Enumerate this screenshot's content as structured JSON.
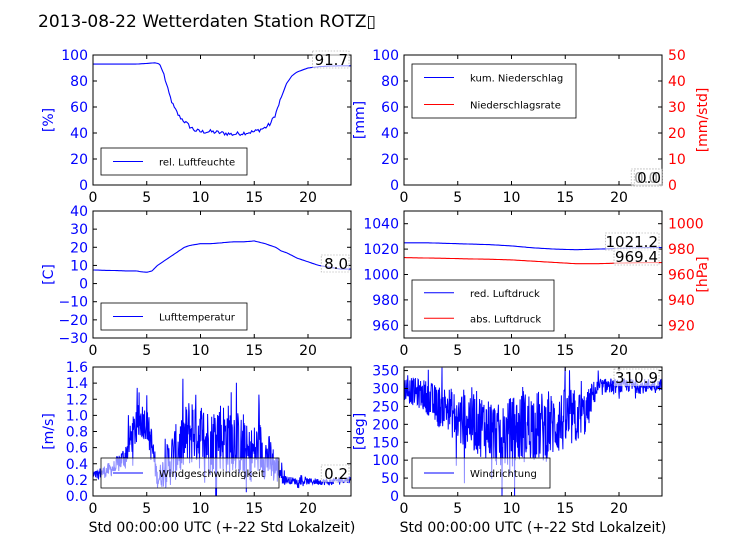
{
  "title": "2013-08-22 Wetterdaten Station ROTZ",
  "title_glyph": "▯",
  "colors": {
    "primary": "#0000ff",
    "secondary": "#ff0000",
    "axis": "#000000"
  },
  "chart_data": [
    {
      "type": "line",
      "panel": "humidity",
      "ylabel": "[%]",
      "xlabel": "",
      "xlim": [
        0,
        24
      ],
      "ylim": [
        0,
        100
      ],
      "xticks": [
        "0",
        "5",
        "10",
        "15",
        "20"
      ],
      "yticks": [
        "0",
        "20",
        "40",
        "60",
        "80",
        "100"
      ],
      "legend": {
        "placement": "lower-left"
      },
      "series": [
        {
          "name": "rel. Luftfeuchte",
          "color": "#0000ff",
          "style": "smooth",
          "x": [
            0,
            2,
            4,
            5,
            5.8,
            6.2,
            6.6,
            7,
            7.5,
            8,
            8.5,
            9,
            9.5,
            10,
            11,
            12,
            13,
            14,
            15,
            16,
            16.5,
            17,
            17.5,
            18,
            18.5,
            19,
            20,
            21,
            22,
            23,
            24
          ],
          "y": [
            93,
            93,
            93,
            93.5,
            94,
            93,
            85,
            72,
            60,
            53,
            49,
            45,
            42,
            41,
            41,
            40,
            39,
            40,
            41,
            44,
            47,
            55,
            67,
            78,
            84,
            87,
            90,
            91,
            91.5,
            91.7,
            91.7
          ]
        }
      ],
      "annotations": [
        "91.7"
      ]
    },
    {
      "type": "line",
      "panel": "precipitation",
      "ylabel": "[mm]",
      "y2label": "[mm/std]",
      "xlabel": "",
      "xlim": [
        0,
        24
      ],
      "ylim": [
        0,
        100
      ],
      "y2lim": [
        0,
        50
      ],
      "xticks": [
        "0",
        "5",
        "10",
        "15",
        "20"
      ],
      "yticks": [
        "0",
        "20",
        "40",
        "60",
        "80",
        "100"
      ],
      "y2ticks": [
        "0",
        "10",
        "20",
        "30",
        "40",
        "50"
      ],
      "legend": {
        "placement": "upper-left"
      },
      "series": [
        {
          "name": "kum. Niederschlag",
          "color": "#0000ff",
          "style": "smooth",
          "x": [
            0,
            24
          ],
          "y": [
            0,
            0
          ]
        },
        {
          "name": "Niederschlagsrate",
          "color": "#ff0000",
          "style": "smooth",
          "axis": "right",
          "x": [
            0,
            24
          ],
          "y": [
            0,
            0
          ]
        }
      ],
      "annotations": [
        "0.0",
        "0.0"
      ]
    },
    {
      "type": "line",
      "panel": "temperature",
      "ylabel": "[C]",
      "xlabel": "",
      "xlim": [
        0,
        24
      ],
      "ylim": [
        -30,
        40
      ],
      "xticks": [
        "0",
        "5",
        "10",
        "15",
        "20"
      ],
      "yticks": [
        "−30",
        "−20",
        "−10",
        "0",
        "10",
        "20",
        "30",
        "40"
      ],
      "legend": {
        "placement": "lower-left"
      },
      "series": [
        {
          "name": "Lufttemperatur",
          "color": "#0000ff",
          "style": "smooth",
          "x": [
            0,
            1,
            2,
            3,
            4,
            4.5,
            5,
            5.5,
            6,
            6.5,
            7,
            7.5,
            8,
            8.5,
            9,
            10,
            11,
            12,
            13,
            14,
            15,
            16,
            17,
            17.5,
            18,
            19,
            20,
            21,
            22,
            23,
            24
          ],
          "y": [
            7.5,
            7.3,
            7.2,
            7,
            7,
            6.5,
            6.2,
            7,
            10,
            12,
            14,
            16,
            18,
            20,
            21,
            22,
            22,
            22.5,
            23,
            23,
            23.5,
            22,
            20,
            18,
            17,
            14,
            12,
            10,
            9,
            8,
            8
          ]
        }
      ],
      "annotations": [
        "8.0"
      ]
    },
    {
      "type": "line",
      "panel": "pressure",
      "ylabel": "",
      "y2label": "[hPa]",
      "xlabel": "",
      "xlim": [
        0,
        24
      ],
      "ylim": [
        950,
        1050
      ],
      "y2lim": [
        910,
        1010
      ],
      "xticks": [
        "0",
        "5",
        "10",
        "15",
        "20"
      ],
      "yticks": [
        "960",
        "980",
        "1000",
        "1020",
        "1040"
      ],
      "y2ticks": [
        "920",
        "940",
        "960",
        "980",
        "1000"
      ],
      "legend": {
        "placement": "lower-left"
      },
      "series": [
        {
          "name": "red. Luftdruck",
          "color": "#0000ff",
          "style": "smooth",
          "x": [
            0,
            2,
            4,
            6,
            8,
            10,
            12,
            14,
            16,
            18,
            20,
            22,
            24
          ],
          "y": [
            1025,
            1025,
            1024.5,
            1024,
            1023.5,
            1022.5,
            1021,
            1020,
            1019.5,
            1020,
            1020.5,
            1021,
            1021.2
          ]
        },
        {
          "name": "abs. Luftdruck",
          "color": "#ff0000",
          "style": "smooth",
          "axis": "right",
          "x": [
            0,
            2,
            4,
            6,
            8,
            10,
            12,
            14,
            16,
            18,
            20,
            22,
            24
          ],
          "y": [
            973.3,
            973,
            972.7,
            972.3,
            972,
            971.5,
            970.5,
            969.5,
            968.5,
            968.5,
            969,
            969.3,
            969.4
          ]
        }
      ],
      "annotations": [
        "1021.2",
        "969.4"
      ]
    },
    {
      "type": "line",
      "panel": "wind-speed",
      "ylabel": "[m/s]",
      "xlabel": "Std 00:00:00 UTC (+-22 Std Lokalzeit)",
      "xlim": [
        0,
        24
      ],
      "ylim": [
        0,
        1.6
      ],
      "xticks": [
        "0",
        "5",
        "10",
        "15",
        "20"
      ],
      "yticks": [
        "0.0",
        "0.2",
        "0.4",
        "0.6",
        "0.8",
        "1.0",
        "1.2",
        "1.4",
        "1.6"
      ],
      "legend": {
        "placement": "lower-left"
      },
      "series": [
        {
          "name": "Windgeschwindigkeit",
          "color": "#0000ff",
          "style": "noisy",
          "x": [
            0,
            1,
            2,
            3,
            3.5,
            4,
            4.5,
            5,
            5.5,
            6,
            6.5,
            7,
            7.5,
            8,
            8.5,
            9,
            9.5,
            10,
            10.5,
            11,
            11.5,
            12,
            12.5,
            13,
            13.5,
            14,
            14.5,
            15,
            15.5,
            16,
            16.5,
            17,
            17.5,
            18,
            19,
            20,
            21,
            22,
            23,
            24
          ],
          "y": [
            0.25,
            0.3,
            0.35,
            0.5,
            0.7,
            0.85,
            0.95,
            0.9,
            0.6,
            0.2,
            0.3,
            0.4,
            0.5,
            0.6,
            0.7,
            0.8,
            0.85,
            0.75,
            0.7,
            0.65,
            0.8,
            0.75,
            0.7,
            0.75,
            0.65,
            0.55,
            0.5,
            0.55,
            0.6,
            0.5,
            0.45,
            0.35,
            0.3,
            0.2,
            0.18,
            0.18,
            0.18,
            0.17,
            0.2,
            0.2
          ],
          "amp": [
            0.05,
            0.08,
            0.1,
            0.15,
            0.2,
            0.25,
            0.25,
            0.2,
            0.25,
            0.1,
            0.2,
            0.3,
            0.35,
            0.35,
            0.4,
            0.45,
            0.45,
            0.45,
            0.45,
            0.4,
            0.45,
            0.45,
            0.45,
            0.45,
            0.4,
            0.4,
            0.35,
            0.35,
            0.35,
            0.3,
            0.3,
            0.2,
            0.15,
            0.05,
            0.04,
            0.04,
            0.04,
            0.04,
            0.04,
            0.04
          ]
        }
      ],
      "annotations": [
        "0.2"
      ]
    },
    {
      "type": "line",
      "panel": "wind-direction",
      "ylabel": "[deg]",
      "xlabel": "Std 00:00:00 UTC (+-22 Std Lokalzeit)",
      "xlim": [
        0,
        24
      ],
      "ylim": [
        0,
        360
      ],
      "xticks": [
        "0",
        "5",
        "10",
        "15",
        "20"
      ],
      "yticks": [
        "0",
        "50",
        "100",
        "150",
        "200",
        "250",
        "300",
        "350"
      ],
      "legend": {
        "placement": "lower-left"
      },
      "series": [
        {
          "name": "Windrichtung",
          "color": "#0000ff",
          "style": "noisy",
          "x": [
            0,
            1,
            2,
            3,
            4,
            5,
            6,
            7,
            8,
            9,
            10,
            11,
            12,
            13,
            14,
            15,
            16,
            17,
            17.5,
            18,
            19,
            20,
            21,
            22,
            23,
            24
          ],
          "y": [
            300,
            290,
            280,
            250,
            250,
            210,
            220,
            200,
            190,
            160,
            180,
            190,
            200,
            190,
            200,
            210,
            220,
            230,
            280,
            300,
            310,
            305,
            310,
            305,
            310,
            310.9
          ],
          "amp": [
            35,
            40,
            45,
            60,
            60,
            80,
            90,
            90,
            90,
            90,
            100,
            100,
            100,
            100,
            90,
            90,
            80,
            60,
            40,
            25,
            20,
            20,
            20,
            20,
            20,
            15
          ]
        }
      ],
      "annotations": [
        "310.9"
      ]
    }
  ]
}
